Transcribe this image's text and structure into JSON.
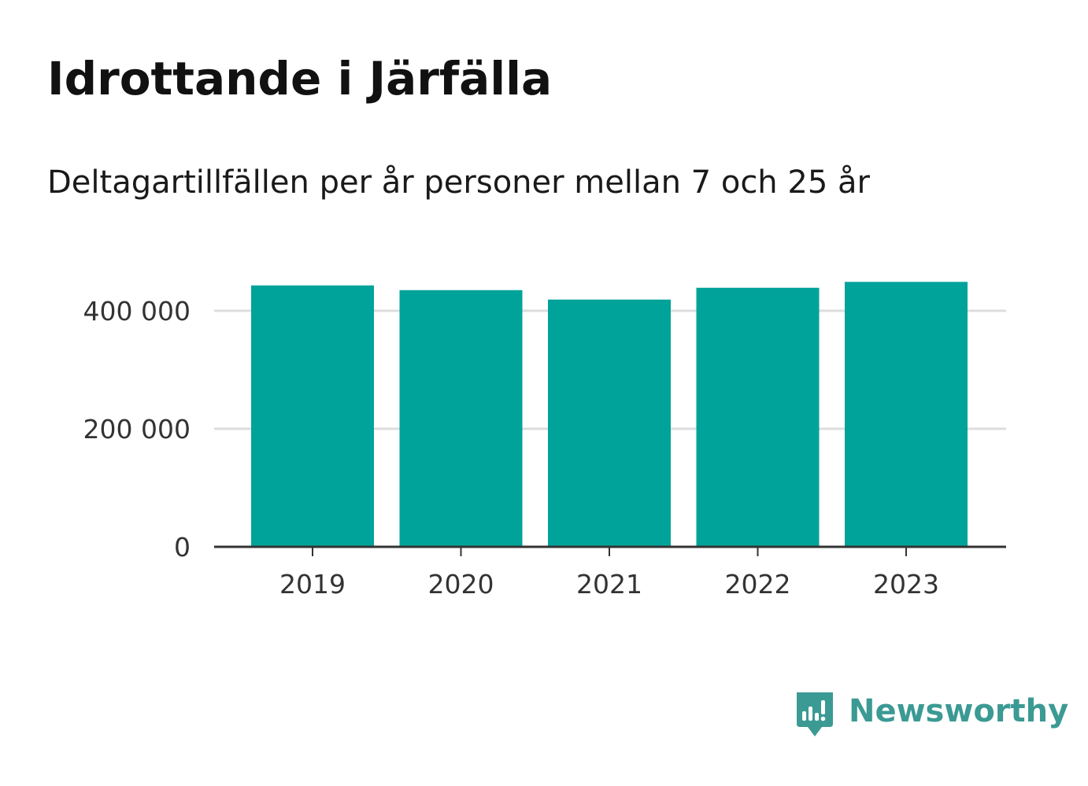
{
  "title": "Idrottande i Järfälla",
  "subtitle": "Deltagartillfällen per år personer mellan 7 och 25 år",
  "brand": {
    "name": "Newsworthy",
    "icon": "newsworthy-logo-icon",
    "color": "#3b9a93"
  },
  "colors": {
    "bar": "#00a39a",
    "grid": "#dddddd",
    "axis": "#333333",
    "text": "#111111"
  },
  "chart_data": {
    "type": "bar",
    "categories": [
      "2019",
      "2020",
      "2021",
      "2022",
      "2023"
    ],
    "values": [
      443000,
      435000,
      419000,
      439000,
      449000
    ],
    "title": "Idrottande i Järfälla",
    "subtitle": "Deltagartillfällen per år personer mellan 7 och 25 år",
    "xlabel": "",
    "ylabel": "",
    "ylim": [
      0,
      460000
    ],
    "yticks": [
      0,
      200000,
      400000
    ],
    "ytick_labels": [
      "0",
      "200 000",
      "400 000"
    ],
    "grid": true,
    "legend": "none"
  }
}
